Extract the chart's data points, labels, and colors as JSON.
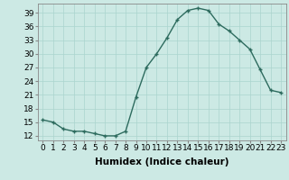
{
  "x": [
    0,
    1,
    2,
    3,
    4,
    5,
    6,
    7,
    8,
    9,
    10,
    11,
    12,
    13,
    14,
    15,
    16,
    17,
    18,
    19,
    20,
    21,
    22,
    23
  ],
  "y": [
    15.5,
    15.0,
    13.5,
    13.0,
    13.0,
    12.5,
    12.0,
    12.0,
    13.0,
    20.5,
    27.0,
    30.0,
    33.5,
    37.5,
    39.5,
    40.0,
    39.5,
    36.5,
    35.0,
    33.0,
    31.0,
    26.5,
    22.0,
    21.5
  ],
  "title": "",
  "xlabel": "Humidex (Indice chaleur)",
  "ylabel": "",
  "xlim": [
    -0.5,
    23.5
  ],
  "ylim": [
    11,
    41
  ],
  "yticks": [
    12,
    15,
    18,
    21,
    24,
    27,
    30,
    33,
    36,
    39
  ],
  "xticks": [
    0,
    1,
    2,
    3,
    4,
    5,
    6,
    7,
    8,
    9,
    10,
    11,
    12,
    13,
    14,
    15,
    16,
    17,
    18,
    19,
    20,
    21,
    22,
    23
  ],
  "xtick_labels": [
    "0",
    "1",
    "2",
    "3",
    "4",
    "5",
    "6",
    "7",
    "8",
    "9",
    "10",
    "11",
    "12",
    "13",
    "14",
    "15",
    "16",
    "17",
    "18",
    "19",
    "20",
    "21",
    "22",
    "23"
  ],
  "line_color": "#2d6b5e",
  "marker": "+",
  "background_color": "#cce9e4",
  "grid_color": "#aad4ce",
  "label_fontsize": 7.5,
  "tick_fontsize": 6.5
}
